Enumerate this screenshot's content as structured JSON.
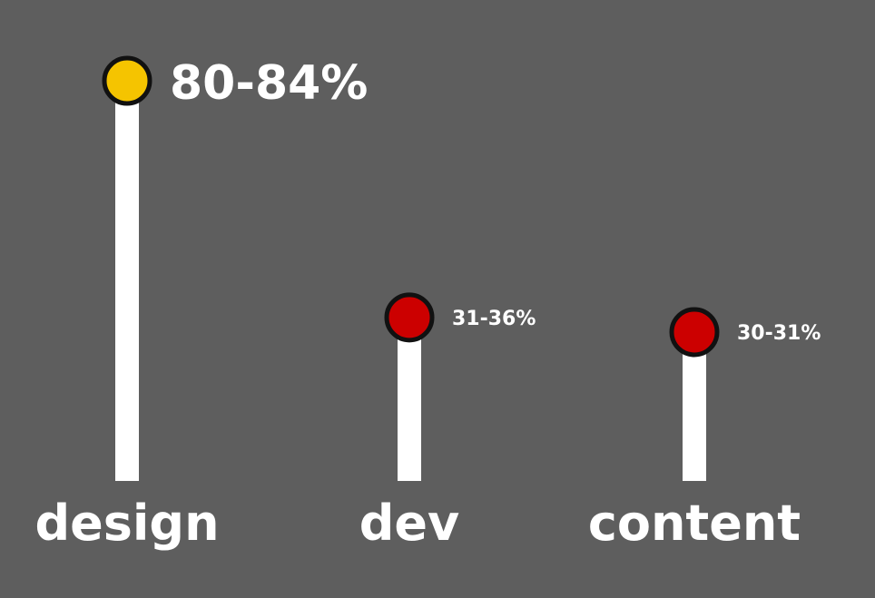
{
  "colors": {
    "background": "#5e5e5e",
    "stem": "#ffffff",
    "outline": "#111111",
    "highlight": "#f5c400",
    "default": "#cc0000",
    "text": "#ffffff"
  },
  "chart_data": {
    "type": "bar",
    "variant": "lollipop",
    "title": "",
    "xlabel": "",
    "ylabel": "",
    "categories": [
      "design",
      "dev",
      "content"
    ],
    "value_labels": [
      "80-84%",
      "31-36%",
      "30-31%"
    ],
    "ranges": [
      [
        80,
        84
      ],
      [
        31,
        36
      ],
      [
        30,
        31
      ]
    ],
    "values": [
      82,
      33.5,
      30.5
    ],
    "highlight_index": 0,
    "ylim": [
      0,
      100
    ],
    "grid": false,
    "legend": "none"
  }
}
